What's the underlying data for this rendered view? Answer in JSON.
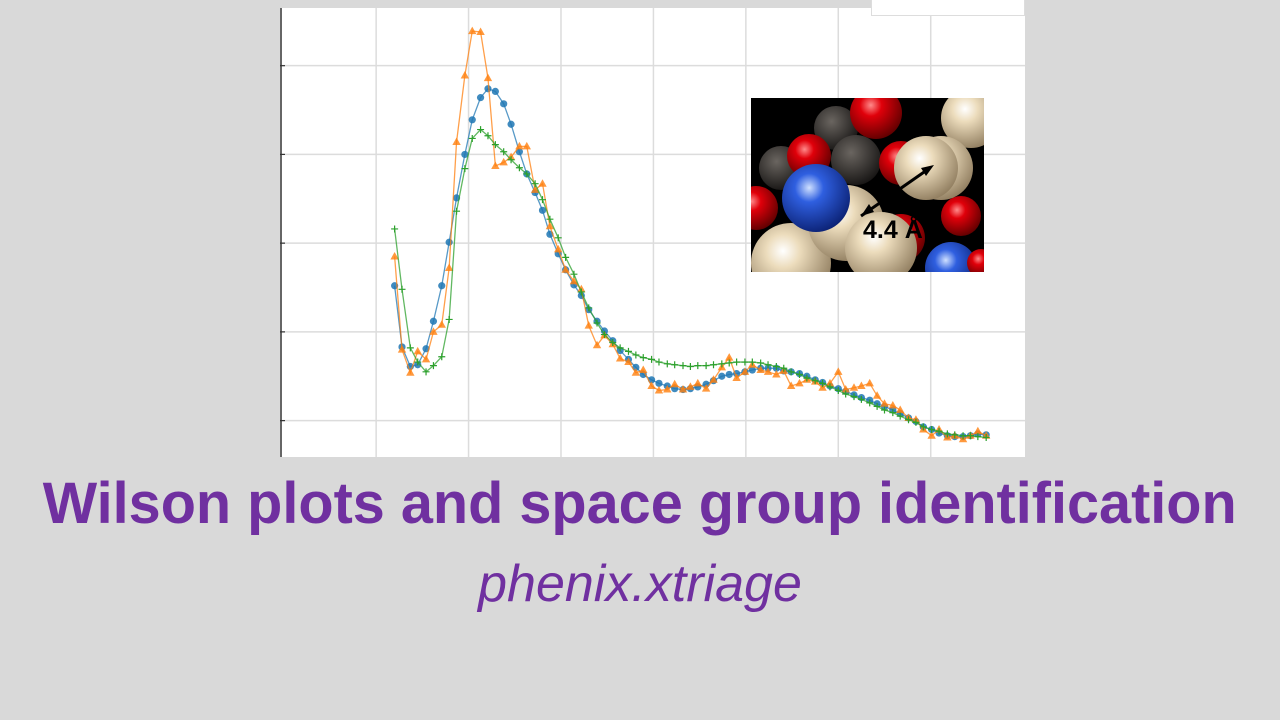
{
  "slide": {
    "title": "Wilson plots and space group identification",
    "subtitle": "phenix.xtriage"
  },
  "inset": {
    "distance_label": "4.4 Å",
    "atom_colors": {
      "carbon_light": "#e9d6b2",
      "carbon_dark": "#3a3633",
      "oxygen": "#e0000a",
      "nitrogen": "#2f5fe0"
    }
  },
  "chart_data": {
    "type": "line",
    "title": "",
    "xlabel": "",
    "ylabel": "",
    "grid": true,
    "legend": "top-right",
    "xlim": [
      -1.04,
      7.02
    ],
    "ylim": [
      -4.1,
      46.5
    ],
    "x_gridlines": [
      0,
      1,
      2,
      3,
      4,
      5,
      6
    ],
    "y_gridlines": [
      0,
      10,
      20,
      30,
      40
    ],
    "x": [
      0.2,
      0.28,
      0.37,
      0.45,
      0.54,
      0.62,
      0.71,
      0.79,
      0.87,
      0.96,
      1.04,
      1.13,
      1.21,
      1.29,
      1.38,
      1.46,
      1.55,
      1.63,
      1.72,
      1.8,
      1.88,
      1.97,
      2.05,
      2.14,
      2.22,
      2.3,
      2.39,
      2.47,
      2.56,
      2.64,
      2.73,
      2.81,
      2.89,
      2.98,
      3.06,
      3.15,
      3.23,
      3.32,
      3.4,
      3.48,
      3.57,
      3.65,
      3.74,
      3.82,
      3.9,
      3.99,
      4.07,
      4.16,
      4.24,
      4.33,
      4.41,
      4.49,
      4.58,
      4.66,
      4.75,
      4.83,
      4.91,
      5.0,
      5.08,
      5.17,
      5.25,
      5.34,
      5.42,
      5.5,
      5.59,
      5.67,
      5.76,
      5.84,
      5.92,
      6.01,
      6.09,
      6.18,
      6.26,
      6.35,
      6.43,
      6.51,
      6.6
    ],
    "series": [
      {
        "color": "#1f77b4",
        "marker": "circle",
        "values": [
          15.2,
          8.3,
          6.1,
          6.3,
          8.1,
          11.2,
          15.2,
          20.1,
          25.1,
          30.0,
          33.9,
          36.4,
          37.4,
          37.1,
          35.7,
          33.4,
          30.3,
          27.8,
          25.7,
          23.7,
          21.0,
          18.8,
          17.0,
          15.3,
          14.1,
          12.5,
          11.2,
          10.1,
          9.0,
          7.9,
          6.9,
          6.0,
          5.2,
          4.6,
          4.2,
          3.9,
          3.6,
          3.5,
          3.6,
          3.8,
          4.1,
          4.5,
          5.0,
          5.2,
          5.3,
          5.5,
          5.7,
          5.9,
          5.9,
          5.9,
          5.6,
          5.5,
          5.3,
          5.0,
          4.6,
          4.3,
          3.9,
          3.6,
          3.3,
          2.9,
          2.6,
          2.3,
          1.9,
          1.6,
          1.2,
          0.8,
          0.3,
          -0.1,
          -0.7,
          -1.0,
          -1.4,
          -1.7,
          -1.8,
          -1.8,
          -1.7,
          -1.5,
          -1.6
        ]
      },
      {
        "color": "#ff7f0e",
        "marker": "triangle",
        "values": [
          18.5,
          8.0,
          5.4,
          7.8,
          6.9,
          10.0,
          10.8,
          17.2,
          31.4,
          38.9,
          43.9,
          43.8,
          38.6,
          28.7,
          29.1,
          29.7,
          30.9,
          30.9,
          26.0,
          26.7,
          21.9,
          19.3,
          17.0,
          15.7,
          14.8,
          10.7,
          8.5,
          9.6,
          8.6,
          7.0,
          6.6,
          5.4,
          5.7,
          3.9,
          3.4,
          3.5,
          4.1,
          3.5,
          3.8,
          4.2,
          3.6,
          4.6,
          6.0,
          7.1,
          4.8,
          5.5,
          6.3,
          5.7,
          5.5,
          5.2,
          5.6,
          3.9,
          4.2,
          4.6,
          4.4,
          3.7,
          4.2,
          5.5,
          3.5,
          3.7,
          3.9,
          4.2,
          2.8,
          1.9,
          1.7,
          1.2,
          0.3,
          0.1,
          -1.0,
          -1.7,
          -1.0,
          -1.9,
          -1.7,
          -2.1,
          -1.7,
          -1.2,
          -1.7
        ]
      },
      {
        "color": "#2ca02c",
        "marker": "plus",
        "values": [
          21.6,
          14.8,
          8.2,
          6.6,
          5.5,
          6.2,
          7.2,
          11.4,
          23.6,
          28.4,
          31.8,
          32.8,
          32.1,
          31.1,
          30.3,
          29.4,
          28.5,
          27.8,
          26.7,
          24.9,
          22.7,
          20.6,
          18.4,
          16.5,
          14.5,
          12.7,
          11.0,
          9.7,
          8.8,
          8.2,
          7.8,
          7.4,
          7.1,
          6.9,
          6.6,
          6.4,
          6.3,
          6.2,
          6.1,
          6.2,
          6.2,
          6.3,
          6.4,
          6.5,
          6.6,
          6.6,
          6.6,
          6.5,
          6.3,
          6.1,
          5.9,
          5.5,
          5.2,
          4.8,
          4.5,
          4.2,
          3.8,
          3.4,
          3.0,
          2.7,
          2.4,
          2.0,
          1.6,
          1.2,
          0.9,
          0.5,
          0.1,
          -0.2,
          -0.7,
          -1.0,
          -1.2,
          -1.5,
          -1.6,
          -1.7,
          -1.7,
          -1.8,
          -1.9
        ]
      }
    ]
  }
}
